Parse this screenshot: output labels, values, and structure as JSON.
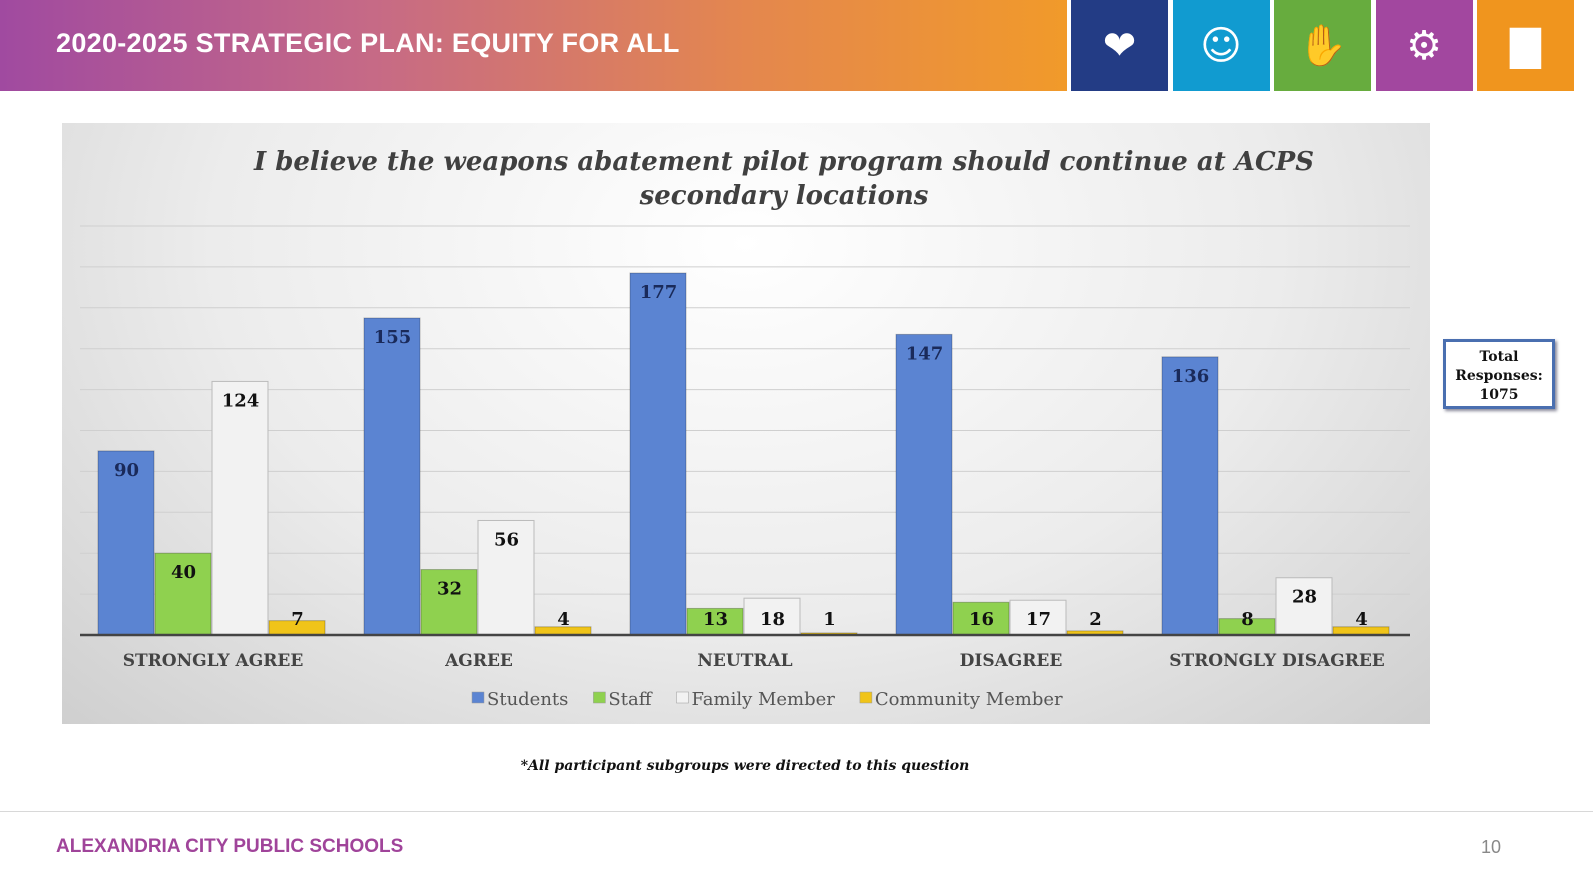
{
  "header": {
    "title": "2020-2025 STRATEGIC PLAN: EQUITY FOR ALL",
    "tiles": [
      {
        "icon": "hands-holding-person-icon",
        "color": "#233c85"
      },
      {
        "icon": "people-heart-icon",
        "color": "#119bd0"
      },
      {
        "icon": "joined-hands-icon",
        "color": "#67ac3e"
      },
      {
        "icon": "lightbulb-gear-icon",
        "color": "#a2479f"
      },
      {
        "icon": "growth-chart-icon",
        "color": "#f0951e"
      }
    ]
  },
  "chart_data": {
    "type": "bar",
    "title": "I believe the weapons abatement pilot program should continue at ACPS secondary locations",
    "title_lines": [
      "I believe the weapons abatement pilot program should continue at ACPS",
      "secondary locations"
    ],
    "categories": [
      "STRONGLY AGREE",
      "AGREE",
      "NEUTRAL",
      "DISAGREE",
      "STRONGLY DISAGREE"
    ],
    "series": [
      {
        "name": "Students",
        "color": "#5b84d2",
        "values": [
          90,
          155,
          177,
          147,
          136
        ]
      },
      {
        "name": "Staff",
        "color": "#8fd14f",
        "values": [
          40,
          32,
          13,
          16,
          8
        ]
      },
      {
        "name": "Family Member",
        "color": "#f2f2f2",
        "values": [
          124,
          56,
          18,
          17,
          28
        ]
      },
      {
        "name": "Community Member",
        "color": "#f0c419",
        "values": [
          7,
          4,
          1,
          2,
          4
        ]
      }
    ],
    "ylim": [
      0,
      200
    ],
    "grid_step": 20,
    "grid": true,
    "legend": "bottom",
    "xlabel": "",
    "ylabel": ""
  },
  "total": {
    "label_1": "Total",
    "label_2": "Responses:",
    "value": "1075"
  },
  "note": "*All participant subgroups were directed to this question",
  "footer": {
    "org": "ALEXANDRIA CITY PUBLIC SCHOOLS",
    "page": "10"
  }
}
